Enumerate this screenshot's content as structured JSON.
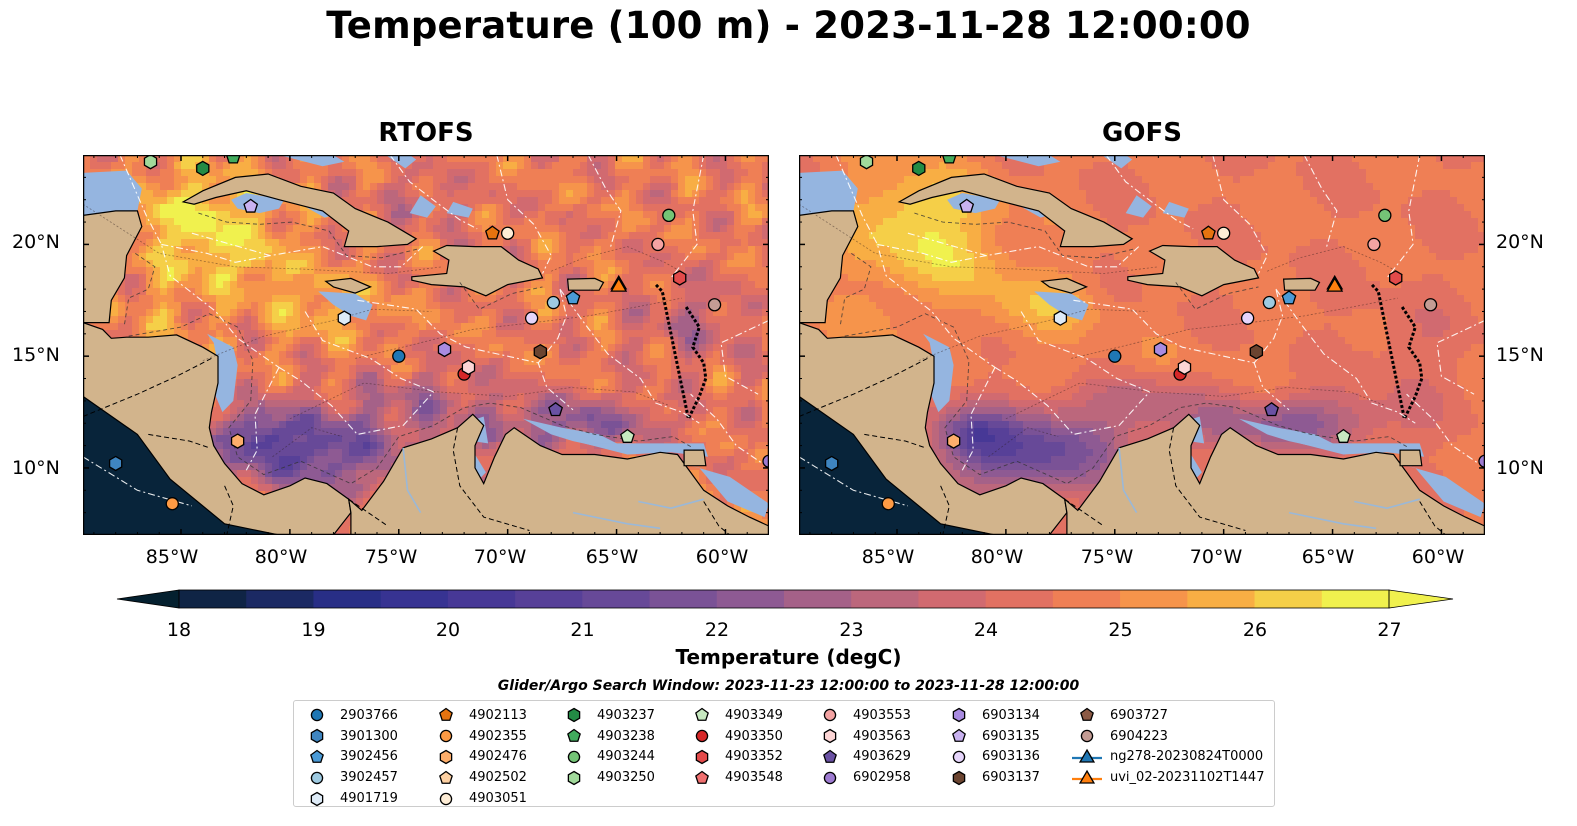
{
  "title": "Temperature (100 m) - 2023-11-28 12:00:00",
  "panels": [
    {
      "id": "rtofs",
      "title": "RTOFS"
    },
    {
      "id": "gofs",
      "title": "GOFS"
    }
  ],
  "axes": {
    "lon_ticks": [
      "85°W",
      "80°W",
      "75°W",
      "70°W",
      "65°W",
      "60°W"
    ],
    "lat_ticks": [
      "20°N",
      "15°N",
      "10°N"
    ],
    "lon_range": [
      -89.5,
      -58.0
    ],
    "lat_range": [
      7.0,
      24.0
    ]
  },
  "colorbar": {
    "label": "Temperature (degC)",
    "ticks": [
      "18",
      "19",
      "20",
      "21",
      "22",
      "23",
      "24",
      "25",
      "26",
      "27"
    ],
    "range": [
      18,
      27
    ],
    "extend": "both",
    "colormap": "thermal"
  },
  "colors": {
    "land": "#d2b48c",
    "shelf_water": "#95b5e0",
    "pacific_deep": "#08243a"
  },
  "legend": {
    "title": "Glider/Argo Search Window: 2023-11-23 12:00:00 to 2023-11-28 12:00:00",
    "columns": [
      [
        {
          "label": "2903766",
          "marker": "circle",
          "color": "#1f77b4"
        },
        {
          "label": "3901300",
          "marker": "hexagon",
          "color": "#3f85c0"
        },
        {
          "label": "3902456",
          "marker": "pentagon",
          "color": "#4a9ad6"
        },
        {
          "label": "3902457",
          "marker": "circle",
          "color": "#9ecae1"
        },
        {
          "label": "4901719",
          "marker": "hexagon",
          "color": "#deebf7"
        }
      ],
      [
        {
          "label": "4902113",
          "marker": "pentagon",
          "color": "#e6730f"
        },
        {
          "label": "4902355",
          "marker": "circle",
          "color": "#fd9a44"
        },
        {
          "label": "4902476",
          "marker": "hexagon",
          "color": "#fdae6b"
        },
        {
          "label": "4902502",
          "marker": "pentagon",
          "color": "#fdd0a2"
        },
        {
          "label": "4903051",
          "marker": "circle",
          "color": "#feedd6"
        }
      ],
      [
        {
          "label": "4903237",
          "marker": "hexagon",
          "color": "#238b45"
        },
        {
          "label": "4903238",
          "marker": "pentagon",
          "color": "#41ab5d"
        },
        {
          "label": "4903244",
          "marker": "circle",
          "color": "#74c476"
        },
        {
          "label": "4903250",
          "marker": "hexagon",
          "color": "#a1d99b"
        }
      ],
      [
        {
          "label": "4903349",
          "marker": "pentagon",
          "color": "#c7e9c0"
        },
        {
          "label": "4903350",
          "marker": "circle",
          "color": "#d62728"
        },
        {
          "label": "4903352",
          "marker": "hexagon",
          "color": "#e34a4a"
        },
        {
          "label": "4903548",
          "marker": "pentagon",
          "color": "#f07070"
        }
      ],
      [
        {
          "label": "4903553",
          "marker": "circle",
          "color": "#f4a3a3"
        },
        {
          "label": "4903563",
          "marker": "hexagon",
          "color": "#fcd5d5"
        },
        {
          "label": "4903629",
          "marker": "pentagon",
          "color": "#6a51a3"
        },
        {
          "label": "6902958",
          "marker": "circle",
          "color": "#9e7bd1"
        }
      ],
      [
        {
          "label": "6903134",
          "marker": "hexagon",
          "color": "#a98be0"
        },
        {
          "label": "6903135",
          "marker": "pentagon",
          "color": "#c9b2f0"
        },
        {
          "label": "6903136",
          "marker": "circle",
          "color": "#e6d5fb"
        },
        {
          "label": "6903137",
          "marker": "hexagon",
          "color": "#6b4430"
        }
      ],
      [
        {
          "label": "6903727",
          "marker": "pentagon",
          "color": "#8c5a45"
        },
        {
          "label": "6904223",
          "marker": "circle",
          "color": "#c49c94"
        },
        {
          "label": "ng278-20230824T0000",
          "marker": "triangle-line",
          "color": "#1f77b4"
        },
        {
          "label": "uvi_02-20231102T1447",
          "marker": "triangle-line",
          "color": "#ff7f0e"
        }
      ]
    ]
  },
  "floats": [
    {
      "id": "2903766",
      "lon": -75.0,
      "lat": 15.0
    },
    {
      "id": "3901300",
      "lon": -88.0,
      "lat": 10.2
    },
    {
      "id": "3902456",
      "lon": -67.0,
      "lat": 17.6
    },
    {
      "id": "3902457",
      "lon": -67.9,
      "lat": 17.4
    },
    {
      "id": "4901719",
      "lon": -77.5,
      "lat": 16.7
    },
    {
      "id": "4902113",
      "lon": -70.7,
      "lat": 20.5
    },
    {
      "id": "4902355",
      "lon": -85.4,
      "lat": 8.4
    },
    {
      "id": "4902476",
      "lon": -82.4,
      "lat": 11.2
    },
    {
      "id": "4903051",
      "lon": -70.0,
      "lat": 20.5
    },
    {
      "id": "4903244",
      "lon": -62.6,
      "lat": 21.3
    },
    {
      "id": "4903250",
      "lon": -86.4,
      "lat": 23.7
    },
    {
      "id": "4903238",
      "lon": -82.6,
      "lat": 23.9
    },
    {
      "id": "4903349",
      "lon": -64.5,
      "lat": 11.4
    },
    {
      "id": "4903350",
      "lon": -72.0,
      "lat": 14.2
    },
    {
      "id": "4903352",
      "lon": -62.1,
      "lat": 18.5
    },
    {
      "id": "4903553",
      "lon": -63.1,
      "lat": 20.0
    },
    {
      "id": "4903563",
      "lon": -71.8,
      "lat": 14.5
    },
    {
      "id": "4903629",
      "lon": -67.8,
      "lat": 12.6
    },
    {
      "id": "6902958",
      "lon": -58.0,
      "lat": 10.3
    },
    {
      "id": "6903134",
      "lon": -72.9,
      "lat": 15.3
    },
    {
      "id": "6903136",
      "lon": -68.9,
      "lat": 16.7
    },
    {
      "id": "6903137",
      "lon": -68.5,
      "lat": 15.2
    },
    {
      "id": "6904223",
      "lon": -60.5,
      "lat": 17.3
    },
    {
      "id": "6903135",
      "lon": -81.8,
      "lat": 21.7
    },
    {
      "id": "4903237",
      "lon": -84.0,
      "lat": 23.4
    },
    {
      "id": "ng278-20230824T0000",
      "lon": -64.9,
      "lat": 18.2
    },
    {
      "id": "uvi_02-20231102T1447",
      "lon": -64.9,
      "lat": 18.1
    }
  ]
}
